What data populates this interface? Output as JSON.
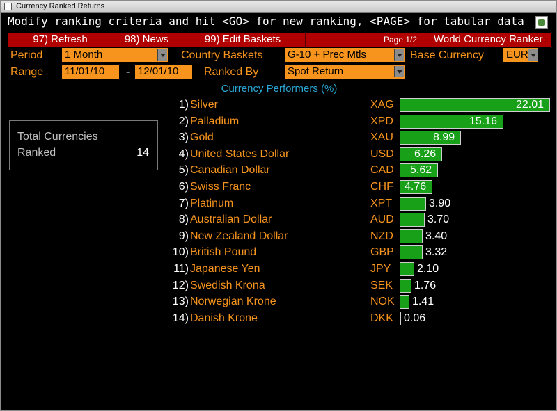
{
  "window": {
    "title": "Currency Ranked Returns"
  },
  "instruction": "Modify ranking criteria and hit <GO> for new ranking, <PAGE> for tabular data",
  "menu": {
    "refresh": "97) Refresh",
    "news": "98) News",
    "edit_baskets": "99) Edit Baskets",
    "page": "Page 1/2",
    "app_name": "World Currency Ranker"
  },
  "controls": {
    "period_label": "Period",
    "period_value": "1 Month",
    "baskets_label": "Country Baskets",
    "baskets_value": "G-10 + Prec Mtls",
    "base_label": "Base Currency",
    "base_value": "EUR",
    "range_label": "Range",
    "range_from": "11/01/10",
    "range_sep": "-",
    "range_to": "12/01/10",
    "ranked_label": "Ranked By",
    "ranked_value": "Spot Return"
  },
  "heading": "Currency Performers  (%)",
  "summary": {
    "line1": "Total Currencies",
    "line2": "Ranked",
    "value": "14"
  },
  "colors": {
    "accent": "#f7941d",
    "bar": "#18a018",
    "menu": "#b10000",
    "heading": "#2aa7d6"
  },
  "rows": [
    {
      "rank": "1)",
      "name": "Silver",
      "code": "XAG",
      "value": 22.01,
      "label": "22.01"
    },
    {
      "rank": "2)",
      "name": "Palladium",
      "code": "XPD",
      "value": 15.16,
      "label": "15.16"
    },
    {
      "rank": "3)",
      "name": "Gold",
      "code": "XAU",
      "value": 8.99,
      "label": "8.99"
    },
    {
      "rank": "4)",
      "name": "United States Dollar",
      "code": "USD",
      "value": 6.26,
      "label": "6.26"
    },
    {
      "rank": "5)",
      "name": "Canadian Dollar",
      "code": "CAD",
      "value": 5.62,
      "label": "5.62"
    },
    {
      "rank": "6)",
      "name": "Swiss Franc",
      "code": "CHF",
      "value": 4.76,
      "label": "4.76"
    },
    {
      "rank": "7)",
      "name": "Platinum",
      "code": "XPT",
      "value": 3.9,
      "label": "3.90"
    },
    {
      "rank": "8)",
      "name": "Australian Dollar",
      "code": "AUD",
      "value": 3.7,
      "label": "3.70"
    },
    {
      "rank": "9)",
      "name": "New Zealand Dollar",
      "code": "NZD",
      "value": 3.4,
      "label": "3.40"
    },
    {
      "rank": "10)",
      "name": "British Pound",
      "code": "GBP",
      "value": 3.32,
      "label": "3.32"
    },
    {
      "rank": "11)",
      "name": "Japanese Yen",
      "code": "JPY",
      "value": 2.1,
      "label": "2.10"
    },
    {
      "rank": "12)",
      "name": "Swedish Krona",
      "code": "SEK",
      "value": 1.76,
      "label": "1.76"
    },
    {
      "rank": "13)",
      "name": "Norwegian Krone",
      "code": "NOK",
      "value": 1.41,
      "label": "1.41"
    },
    {
      "rank": "14)",
      "name": "Danish Krone",
      "code": "DKK",
      "value": 0.06,
      "label": "0.06"
    }
  ]
}
